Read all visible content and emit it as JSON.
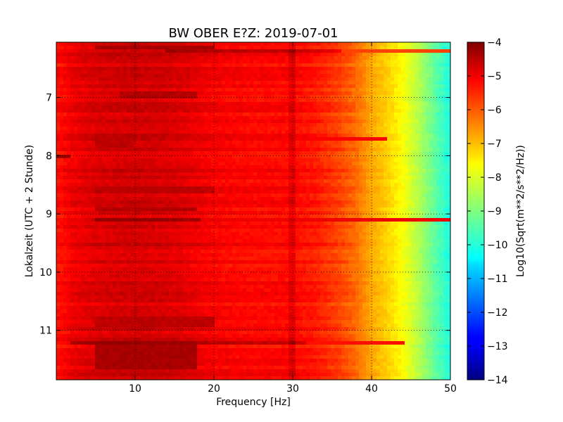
{
  "chart_data": {
    "type": "heatmap",
    "title": "BW OBER E?Z: 2019-07-01",
    "xlabel": "Frequency [Hz]",
    "ylabel": "Lokalzeit (UTC + 2 Stunde)",
    "xlim": [
      0,
      50
    ],
    "ylim": [
      11.85,
      6.05
    ],
    "xticks": [
      10,
      20,
      30,
      40,
      50
    ],
    "xtick_labels": [
      "10",
      "20",
      "30",
      "40",
      "50"
    ],
    "yticks": [
      7,
      8,
      9,
      10,
      11
    ],
    "ytick_labels": [
      "7",
      "8",
      "9",
      "10",
      "11"
    ],
    "grid": true,
    "colormap": "jet",
    "colorbar": {
      "label": "Log10(Sqrt(m**2/s**2/Hz))",
      "range": [
        -14,
        -4
      ],
      "ticks": [
        -4,
        -5,
        -6,
        -7,
        -8,
        -9,
        -10,
        -11,
        -12,
        -13,
        -14
      ],
      "tick_labels": [
        "−4",
        "−5",
        "−6",
        "−7",
        "−8",
        "−9",
        "−10",
        "−11",
        "−12",
        "−13",
        "−14"
      ]
    },
    "spectrum_profile": {
      "frequency_hz": [
        0,
        1,
        2,
        5,
        10,
        15,
        20,
        25,
        30,
        33,
        36,
        38,
        40,
        42,
        44,
        46,
        48,
        50
      ],
      "log10_amplitude": [
        -5.4,
        -5.3,
        -5.1,
        -4.9,
        -4.8,
        -4.9,
        -5.2,
        -5.3,
        -5.3,
        -5.5,
        -5.9,
        -6.3,
        -6.9,
        -7.3,
        -7.8,
        -8.5,
        -9.3,
        -10.0
      ]
    },
    "bright_lines": [
      {
        "time": 8.0,
        "freq_range": [
          0,
          2
        ],
        "value": -4.3
      },
      {
        "time": 6.2,
        "freq_range": [
          14,
          50
        ],
        "value": -5.9
      },
      {
        "time": 9.1,
        "freq_range": [
          5,
          50
        ],
        "value": -5.1
      },
      {
        "time": 7.7,
        "freq_range": [
          28,
          42
        ],
        "value": -5.2
      },
      {
        "time": 11.2,
        "freq_range": [
          2,
          44
        ],
        "value": -5.4
      }
    ],
    "dark_bands": [
      {
        "time_range": [
          6.12,
          6.2
        ],
        "freq_range": [
          5,
          20
        ],
        "value": -4.4
      },
      {
        "time_range": [
          6.9,
          7.0
        ],
        "freq_range": [
          8,
          18
        ],
        "value": -4.5
      },
      {
        "time_range": [
          7.6,
          7.85
        ],
        "freq_range": [
          5,
          10
        ],
        "value": -4.6
      },
      {
        "time_range": [
          8.55,
          8.65
        ],
        "freq_range": [
          5,
          20
        ],
        "value": -4.6
      },
      {
        "time_range": [
          8.9,
          8.98
        ],
        "freq_range": [
          5,
          18
        ],
        "value": -4.5
      },
      {
        "time_range": [
          10.75,
          10.95
        ],
        "freq_range": [
          5,
          20
        ],
        "value": -4.6
      },
      {
        "time_range": [
          11.25,
          11.65
        ],
        "freq_range": [
          5,
          18
        ],
        "value": -4.4
      }
    ]
  }
}
